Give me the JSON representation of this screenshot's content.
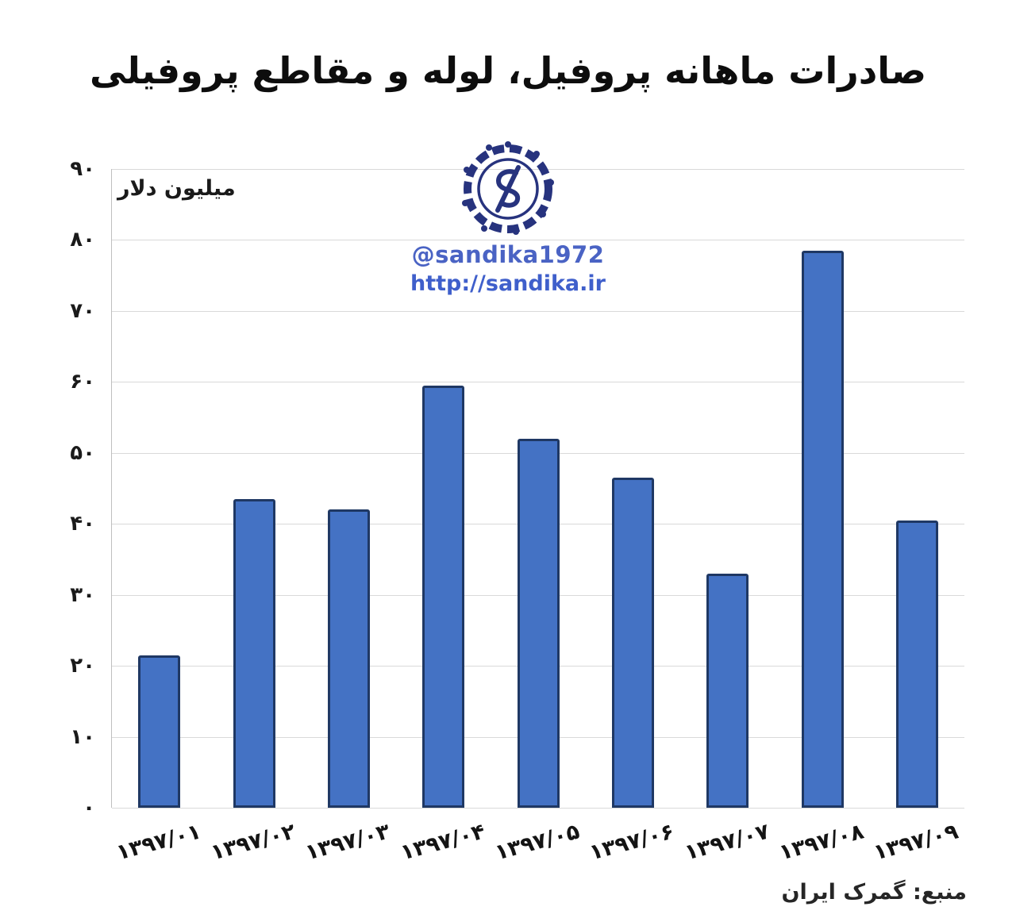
{
  "chart_data": {
    "type": "bar",
    "title": "صادرات ماهانه پروفیل، لوله و مقاطع پروفیلی",
    "ylabel": "میلیون دلار",
    "xlabel": "",
    "categories": [
      "۱۳۹۷/۰۱",
      "۱۳۹۷/۰۲",
      "۱۳۹۷/۰۳",
      "۱۳۹۷/۰۴",
      "۱۳۹۷/۰۵",
      "۱۳۹۷/۰۶",
      "۱۳۹۷/۰۷",
      "۱۳۹۷/۰۸",
      "۱۳۹۷/۰۹"
    ],
    "values": [
      21.5,
      43.5,
      42,
      59.5,
      52,
      46.5,
      33,
      78.5,
      40.5
    ],
    "ylim": [
      0,
      90
    ],
    "ytick_values": [
      0,
      10,
      20,
      30,
      40,
      50,
      60,
      70,
      80,
      90
    ],
    "ytick_labels": [
      "۰",
      "۱۰",
      "۲۰",
      "۳۰",
      "۴۰",
      "۵۰",
      "۶۰",
      "۷۰",
      "۸۰",
      "۹۰"
    ],
    "grid": true,
    "legend": false,
    "bar_color": "#4472c4",
    "bar_border_color": "#1f3864",
    "source": "منبع: گمرک ایران"
  },
  "watermark": {
    "logo": "sandika-emblem-logo",
    "handle": "@sandika1972",
    "url": "http://sandika.ir",
    "accent_color": "#27337e",
    "text_color": "#4a63c4"
  }
}
